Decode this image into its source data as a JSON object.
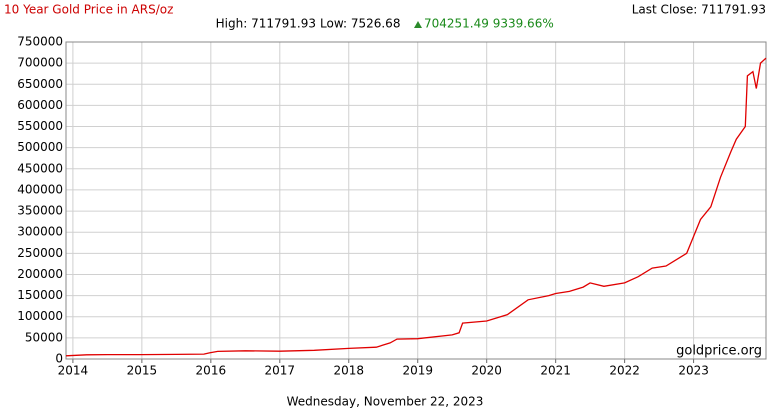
{
  "chart_data": {
    "type": "line",
    "title": "10 Year Gold Price in ARS/oz",
    "last_close": "Last Close: 711791.93",
    "high": "High: 711791.93",
    "low": "Low: 7526.68",
    "change": "704251.49 9339.66%",
    "watermark": "goldprice.org",
    "date": "Wednesday, November 22, 2023",
    "color": "#e00000",
    "grid": true,
    "x": [
      2013.9,
      2014.2,
      2014.5,
      2015.0,
      2015.5,
      2015.9,
      2015.98,
      2016.1,
      2016.5,
      2017.0,
      2017.5,
      2018.0,
      2018.4,
      2018.6,
      2018.7,
      2019.0,
      2019.5,
      2019.6,
      2019.65,
      2020.0,
      2020.3,
      2020.6,
      2020.9,
      2021.0,
      2021.2,
      2021.4,
      2021.5,
      2021.7,
      2022.0,
      2022.2,
      2022.4,
      2022.6,
      2022.8,
      2022.9,
      2023.0,
      2023.1,
      2023.25,
      2023.39,
      2023.54,
      2023.62,
      2023.75,
      2023.78,
      2023.86,
      2023.91,
      2023.97,
      2024.05
    ],
    "values": [
      7526.68,
      10000,
      10500,
      10500,
      11000,
      11500,
      14500,
      18000,
      19500,
      18500,
      20500,
      25000,
      28000,
      38000,
      47000,
      48000,
      57000,
      62000,
      85000,
      90000,
      105000,
      140000,
      150000,
      155000,
      160000,
      170000,
      180000,
      172000,
      180000,
      195000,
      215000,
      220000,
      240000,
      250000,
      290000,
      330000,
      360000,
      430000,
      490000,
      520000,
      550000,
      670000,
      680000,
      640000,
      700000,
      711791.93
    ],
    "xlim": [
      2013.9,
      2024.05
    ],
    "xticks": [
      2014,
      2015,
      2016,
      2017,
      2018,
      2019,
      2020,
      2021,
      2022,
      2023
    ],
    "ylim": [
      0,
      750000
    ],
    "yticks": [
      0,
      50000,
      100000,
      150000,
      200000,
      250000,
      300000,
      350000,
      400000,
      450000,
      500000,
      550000,
      600000,
      650000,
      700000,
      750000
    ]
  }
}
